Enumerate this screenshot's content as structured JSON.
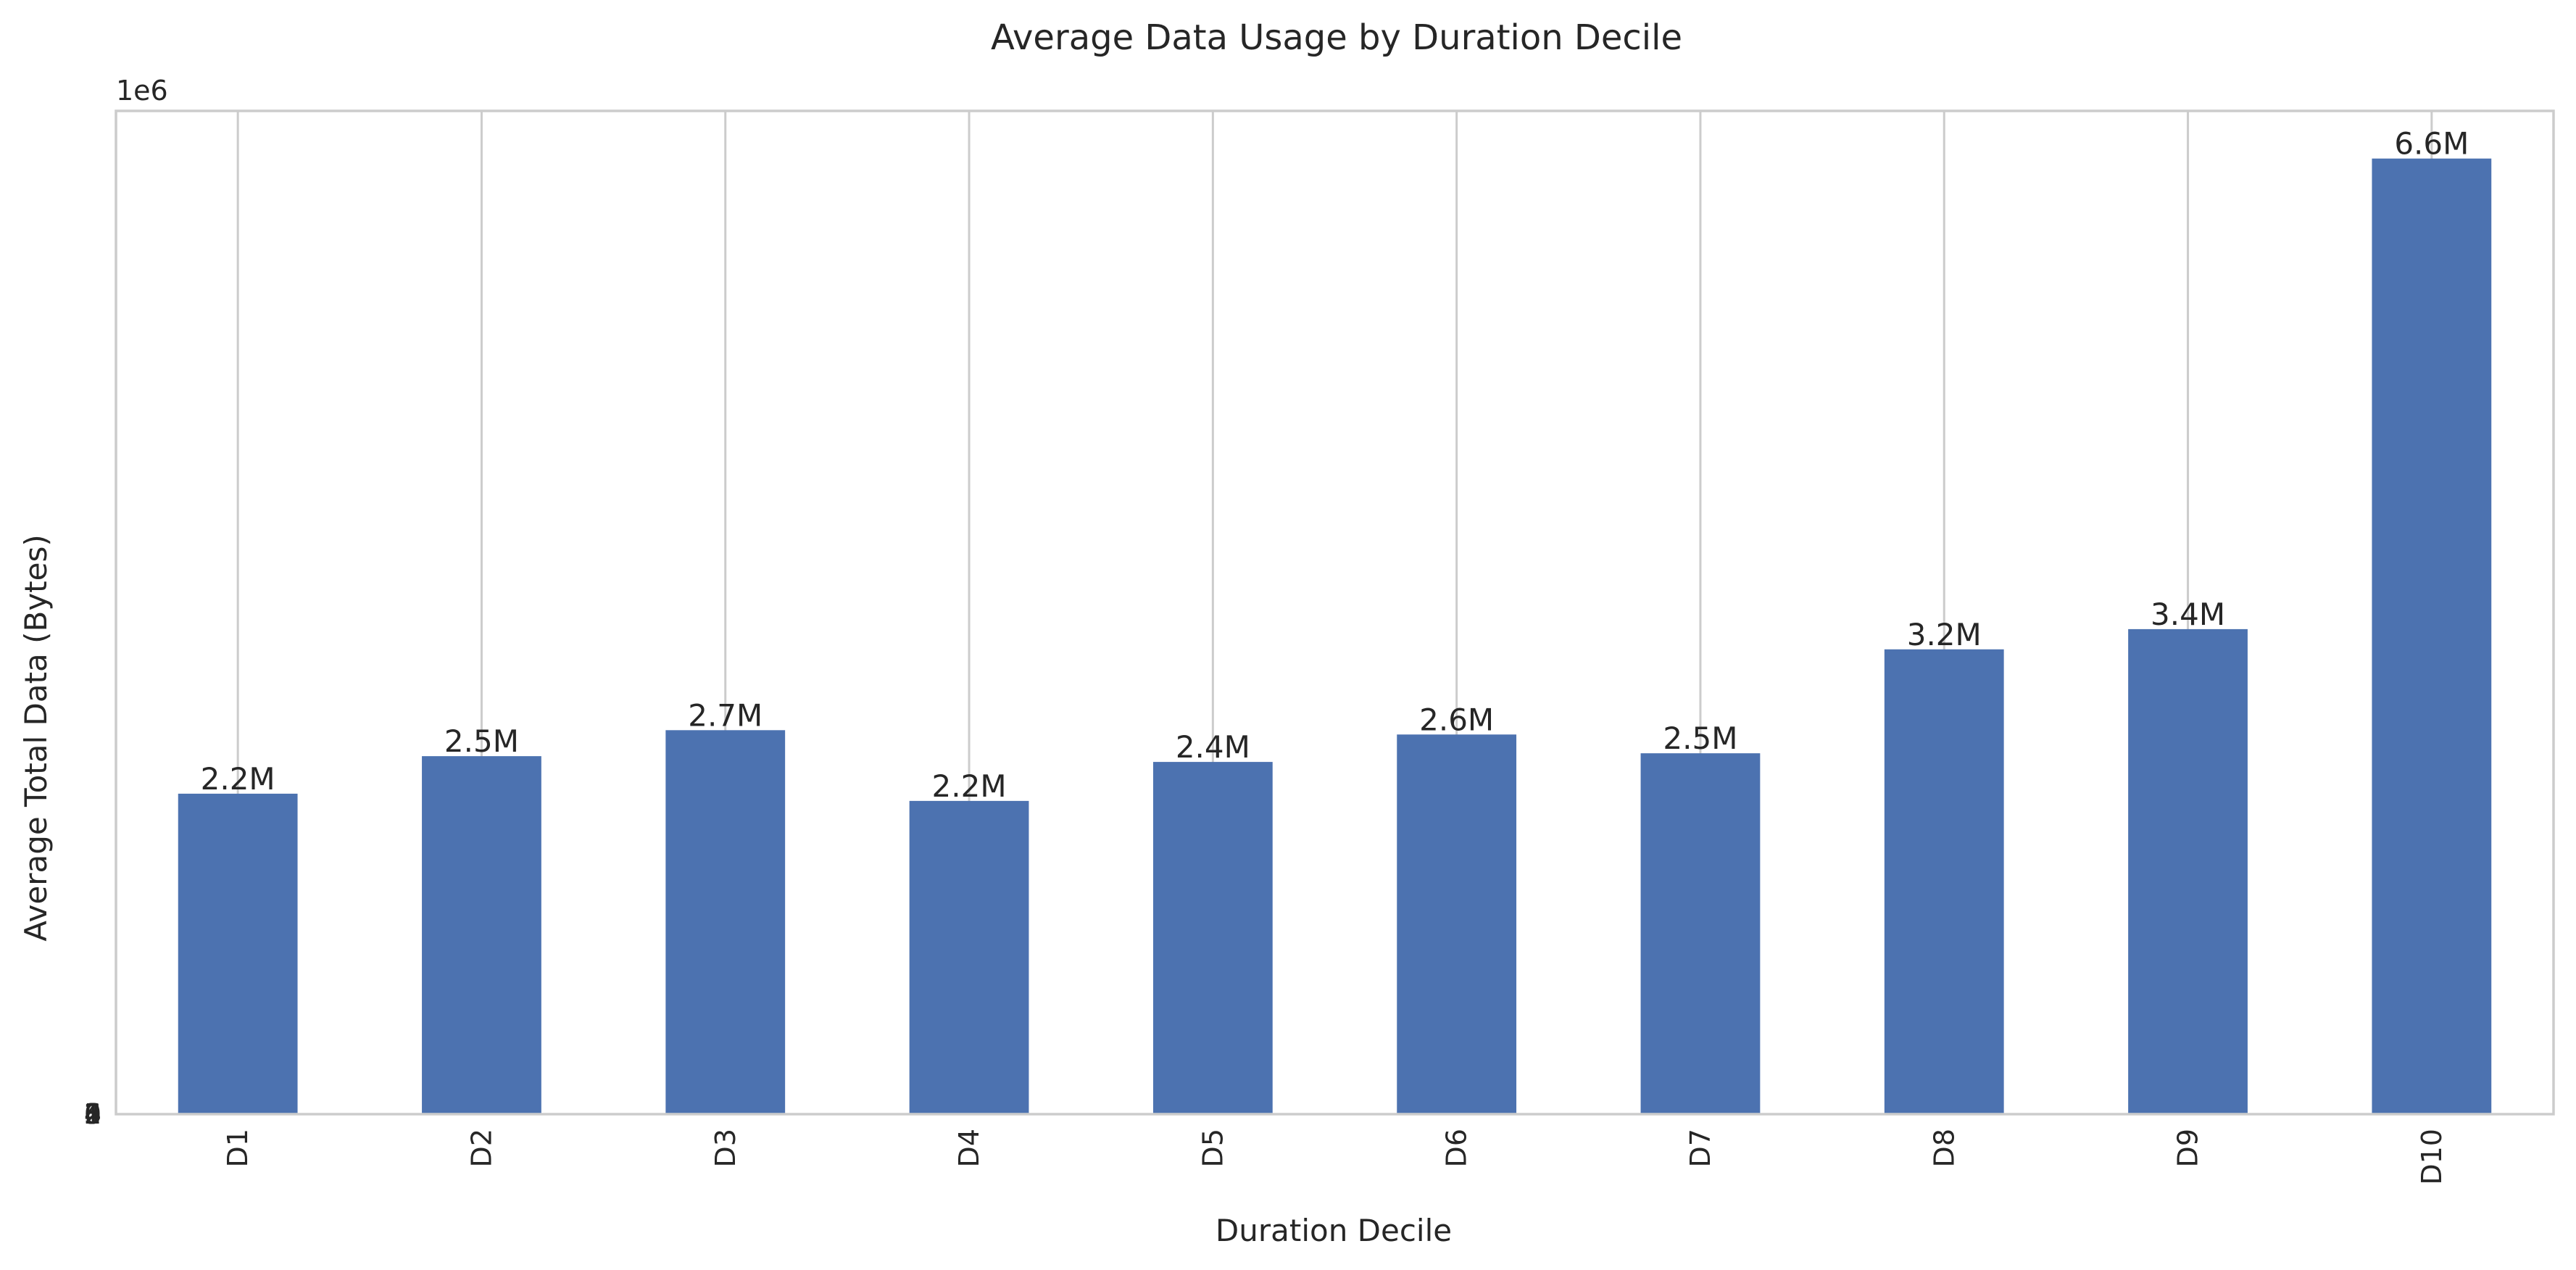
{
  "chart_data": {
    "type": "bar",
    "title": "Average Data Usage by Duration Decile",
    "xlabel": "Duration Decile",
    "ylabel": "Average Total Data (Bytes)",
    "y_offset_label": "1e6",
    "categories": [
      "D1",
      "D2",
      "D3",
      "D4",
      "D5",
      "D6",
      "D7",
      "D8",
      "D9",
      "D10"
    ],
    "values": [
      2220000,
      2480000,
      2660000,
      2170000,
      2440000,
      2630000,
      2500000,
      3220000,
      3360000,
      6620000
    ],
    "data_labels": [
      "2.2M",
      "2.5M",
      "2.7M",
      "2.2M",
      "2.4M",
      "2.6M",
      "2.5M",
      "3.2M",
      "3.4M",
      "6.6M"
    ],
    "yticks": [
      0,
      1,
      2,
      3,
      4,
      5,
      6
    ],
    "ytick_labels": [
      "0",
      "1",
      "2",
      "3",
      "4",
      "5",
      "6"
    ],
    "ylim": [
      0,
      6950000
    ],
    "grid": true,
    "bar_color": "#4c72b0"
  }
}
